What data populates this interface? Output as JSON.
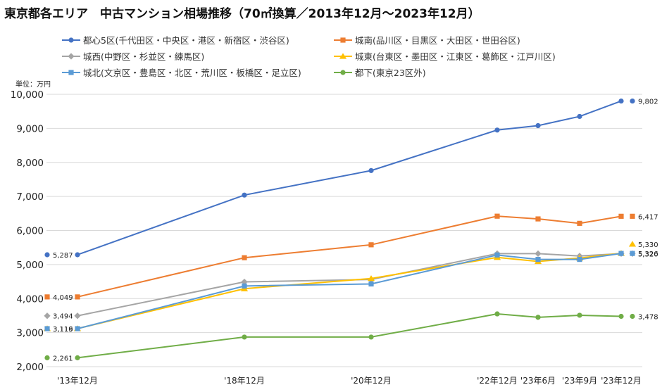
{
  "chart_data": {
    "type": "line",
    "title": "東京都各エリア　中古マンション相場推移（70㎡換算／2013年12月～2023年12月）",
    "unit_label": "単位：万円",
    "categories": [
      "'13年12月",
      "'18年12月",
      "'20年12月",
      "'22年12月",
      "'23年6月",
      "'23年9月",
      "'23年12月"
    ],
    "ylim": [
      2000,
      10000
    ],
    "yticks": [
      "2,000",
      "3,000",
      "4,000",
      "5,000",
      "6,000",
      "7,000",
      "8,000",
      "9,000",
      "10,000"
    ],
    "ytick_values": [
      2000,
      3000,
      4000,
      5000,
      6000,
      7000,
      8000,
      9000,
      10000
    ],
    "xlabel": "",
    "ylabel": "",
    "grid": true,
    "legend_position": "top",
    "series": [
      {
        "name": "都心5区(千代田区・中央区・港区・新宿区・渋谷区)",
        "color": "#4472C4",
        "marker": "circle",
        "values": [
          5287,
          7040,
          7760,
          8950,
          9080,
          9350,
          9802
        ],
        "start_label": "5,287",
        "end_label": "9,802"
      },
      {
        "name": "城南(品川区・目黒区・大田区・世田谷区)",
        "color": "#ED7D31",
        "marker": "square",
        "values": [
          4049,
          5200,
          5580,
          6420,
          6340,
          6210,
          6417
        ],
        "start_label": "4,049",
        "end_label": "6,417"
      },
      {
        "name": "城西(中野区・杉並区・練馬区)",
        "color": "#A5A5A5",
        "marker": "diamond",
        "values": [
          3494,
          4490,
          4560,
          5320,
          5320,
          5250,
          5320
        ],
        "start_label": "3,494",
        "end_label": "5,320"
      },
      {
        "name": "城東(台東区・墨田区・江東区・葛飾区・江戸川区)",
        "color": "#FFC000",
        "marker": "triangle",
        "values": [
          3119,
          4290,
          4590,
          5210,
          5090,
          5190,
          5330
        ],
        "start_label": "3,119",
        "end_label": "5,330"
      },
      {
        "name": "城北(文京区・豊島区・北区・荒川区・板橋区・足立区)",
        "color": "#5B9BD5",
        "marker": "square",
        "values": [
          3116,
          4370,
          4430,
          5280,
          5150,
          5150,
          5326
        ],
        "start_label": "3,116",
        "end_label": "5,326"
      },
      {
        "name": "都下(東京23区外)",
        "color": "#70AD47",
        "marker": "circle",
        "values": [
          2261,
          2870,
          2870,
          3550,
          3450,
          3510,
          3478
        ],
        "start_label": "2,261",
        "end_label": "3,478"
      }
    ]
  }
}
